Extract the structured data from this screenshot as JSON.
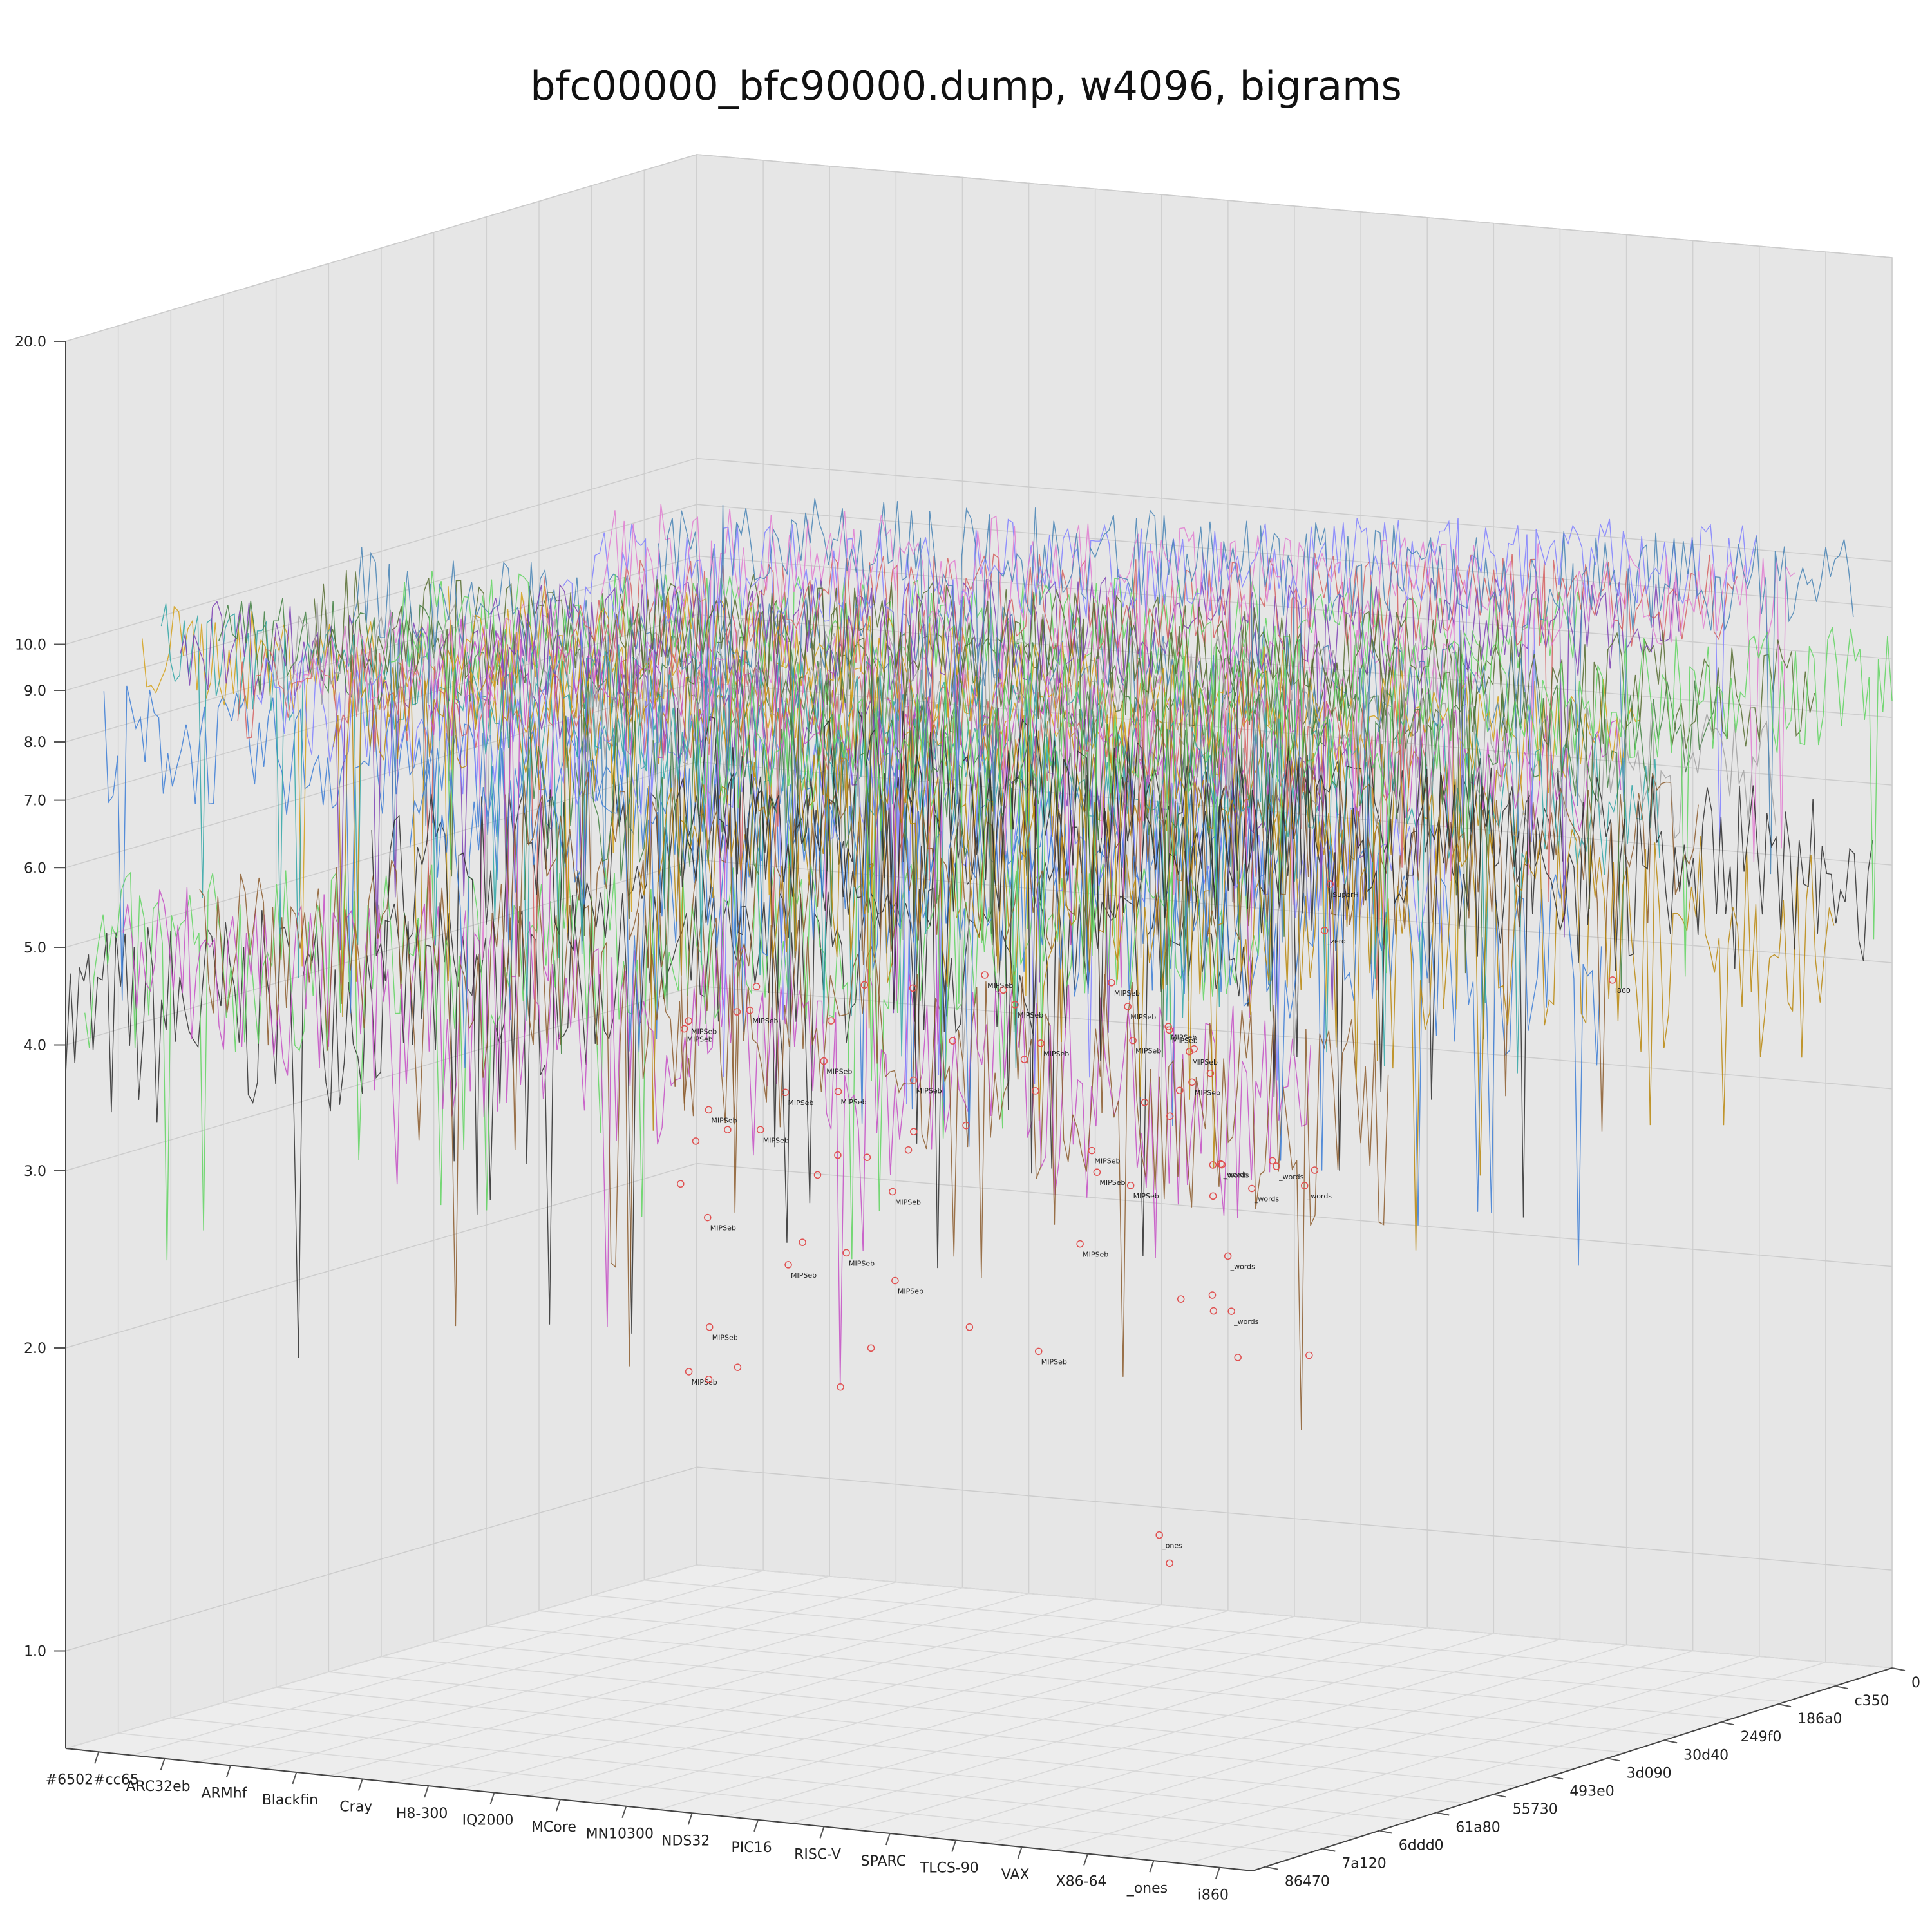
{
  "chart_data": {
    "type": "line",
    "projection": "3d",
    "title": "bfc00000_bfc90000.dump, w4096, bigrams",
    "z_scale": "log",
    "z_ticks": [
      "1.0",
      "2.0",
      "3.0",
      "4.0",
      "5.0",
      "6.0",
      "7.0",
      "8.0",
      "9.0",
      "10.0",
      "20.0"
    ],
    "z_range": [
      0.8,
      20
    ],
    "x_ticks": [
      "#6502#cc65",
      "ARC32eb",
      "ARMhf",
      "Blackfin",
      "Cray",
      "H8-300",
      "IQ2000",
      "MCore",
      "MN10300",
      "NDS32",
      "PIC16",
      "RISC-V",
      "SPARC",
      "TLCS-90",
      "VAX",
      "X86-64",
      "_ones",
      "i860"
    ],
    "y_ticks": [
      "0",
      "c350",
      "186a0",
      "249f0",
      "30d40",
      "3d090",
      "493e0",
      "55730",
      "61a80",
      "6ddd0",
      "7a120",
      "86470"
    ],
    "grid": true,
    "pane_color": "#e6e6e6",
    "marker_color": "#e05050",
    "annotations": [
      {
        "label": "MIPSeb",
        "count": 62
      },
      {
        "label": "_words",
        "count": 14
      },
      {
        "label": "_ones",
        "count": 2
      },
      {
        "label": "i860",
        "count": 1
      },
      {
        "label": "SuperH",
        "count": 1
      },
      {
        "label": "_zero",
        "count": 1
      }
    ],
    "series_colors": [
      "#2b2b2b",
      "#5fd35f",
      "#3a7bd5",
      "#c44dc4",
      "#d4a017",
      "#2fa4a4",
      "#7b3fb3",
      "#8b5a2b",
      "#3f7f3f",
      "#d35f5f",
      "#7f7fff",
      "#a0a0a0",
      "#e07bd0",
      "#556b2f",
      "#b8860b",
      "#4682b4"
    ]
  }
}
